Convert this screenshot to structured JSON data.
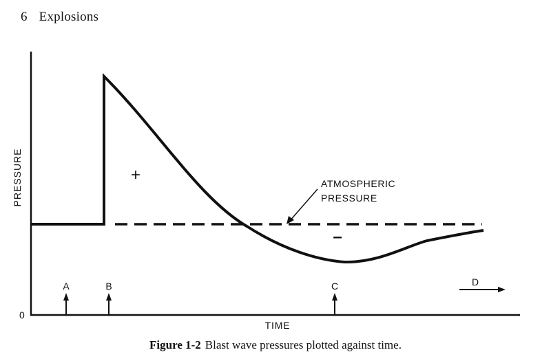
{
  "header": {
    "page_number": "6",
    "chapter_title": "Explosions"
  },
  "figure": {
    "y_axis_label": "PRESSURE",
    "x_axis_label": "TIME",
    "origin_label": "0",
    "positive_phase_label": "+",
    "negative_phase_label": "–",
    "annotation_line1": "ATMOSPHERIC",
    "annotation_line2": "PRESSURE",
    "markers": [
      "A",
      "B",
      "C"
    ],
    "direction_label": "D"
  },
  "caption": {
    "number": "Figure 1-2",
    "text": "Blast wave pressures plotted against time."
  },
  "style": {
    "ink_color": "#111111"
  }
}
